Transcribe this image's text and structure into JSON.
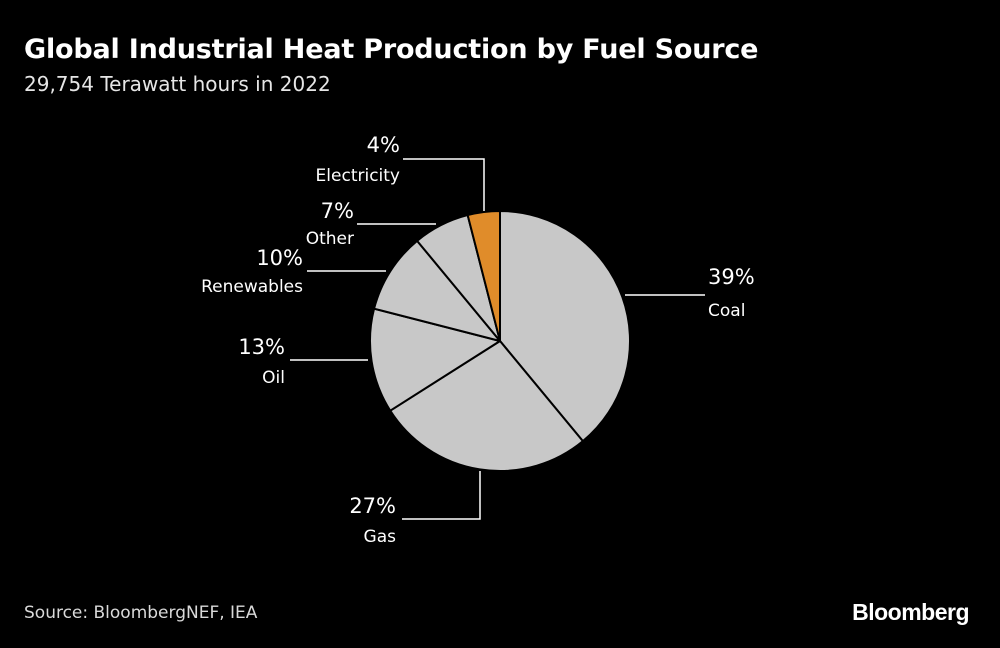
{
  "header": {
    "title": "Global Industrial Heat Production by Fuel Source",
    "subtitle": "29,754 Terawatt hours in 2022"
  },
  "footer": {
    "source": "Source: BloombergNEF, IEA",
    "brand": "Bloomberg"
  },
  "colors": {
    "background": "#000000",
    "slice": "#c8c8c8",
    "highlight": "#e08c2a",
    "text": "#ffffff"
  },
  "chart_data": {
    "type": "pie",
    "title": "Global Industrial Heat Production by Fuel Source",
    "subtitle": "29,754 Terawatt hours in 2022",
    "start": "12 o'clock",
    "direction": "clockwise",
    "slices": [
      {
        "label": "Coal",
        "value": 39,
        "pct_label": "39%",
        "color": "#c8c8c8"
      },
      {
        "label": "Gas",
        "value": 27,
        "pct_label": "27%",
        "color": "#c8c8c8"
      },
      {
        "label": "Oil",
        "value": 13,
        "pct_label": "13%",
        "color": "#c8c8c8"
      },
      {
        "label": "Renewables",
        "value": 10,
        "pct_label": "10%",
        "color": "#c8c8c8"
      },
      {
        "label": "Other",
        "value": 7,
        "pct_label": "7%",
        "color": "#c8c8c8"
      },
      {
        "label": "Electricity",
        "value": 4,
        "pct_label": "4%",
        "color": "#e08c2a"
      }
    ]
  }
}
